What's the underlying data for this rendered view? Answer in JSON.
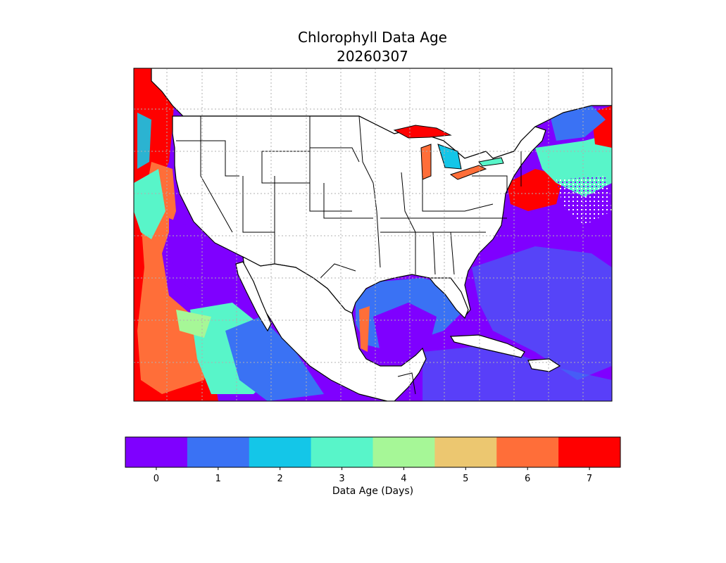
{
  "title": "Chlorophyll Data Age",
  "subtitle": "20260307",
  "colorbar": {
    "label": "Data Age (Days)",
    "ticks": [
      "0",
      "1",
      "2",
      "3",
      "4",
      "5",
      "6",
      "7"
    ],
    "colors": [
      "#7f00ff",
      "#3a72f4",
      "#14c6e8",
      "#58f5c9",
      "#a6f797",
      "#ecc770",
      "#ff6e39",
      "#ff0000"
    ]
  },
  "map": {
    "region": "continental United States with surrounding Pacific, Gulf of Mexico and Atlantic waters",
    "land_color": "#ffffff",
    "border_color": "#000000",
    "gridlines": "dotted gray"
  },
  "chart_data": {
    "type": "heatmap",
    "title": "Chlorophyll Data Age",
    "subtitle": "20260307",
    "colorbar_label": "Data Age (Days)",
    "levels": [
      0,
      1,
      2,
      3,
      4,
      5,
      6,
      7
    ],
    "level_colors": [
      "#7f00ff",
      "#3a72f4",
      "#14c6e8",
      "#58f5c9",
      "#a6f797",
      "#ecc770",
      "#ff6e39",
      "#ff0000"
    ],
    "grid": true
  }
}
